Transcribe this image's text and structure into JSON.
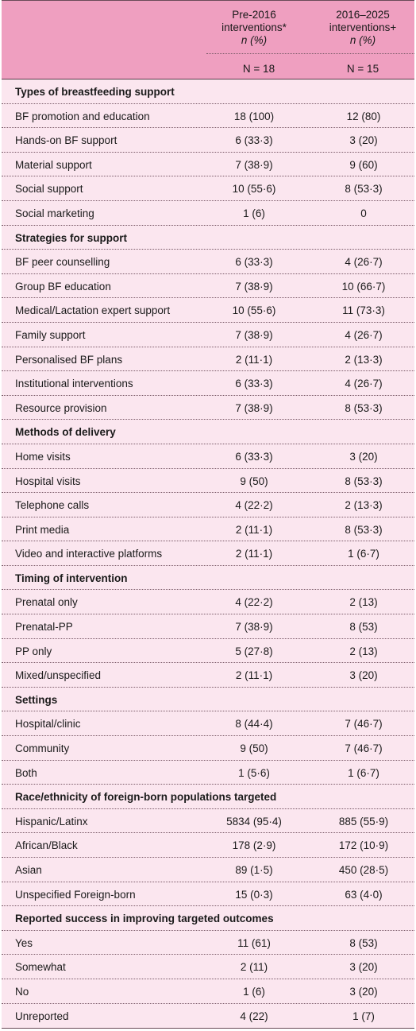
{
  "header": {
    "col1_line1": "Pre-2016",
    "col1_line2": "interventions*",
    "col1_line3": "n (%)",
    "col1_N": "N = 18",
    "col2_line1": "2016–2025",
    "col2_line2": "interventions+",
    "col2_line3": "n (%)",
    "col2_N": "N = 15"
  },
  "rows": [
    {
      "label": "Types of breastfeeding support",
      "section": true,
      "v1": "",
      "v2": ""
    },
    {
      "label": "BF promotion and education",
      "v1": "18 (100)",
      "v2": "12 (80)"
    },
    {
      "label": "Hands-on BF support",
      "v1": "6 (33·3)",
      "v2": "3 (20)"
    },
    {
      "label": "Material support",
      "v1": "7 (38·9)",
      "v2": "9 (60)"
    },
    {
      "label": "Social support",
      "v1": "10 (55·6)",
      "v2": "8 (53·3)"
    },
    {
      "label": "Social marketing",
      "v1": "1 (6)",
      "v2": "0"
    },
    {
      "label": "Strategies for support",
      "section": true,
      "v1": "",
      "v2": ""
    },
    {
      "label": "BF peer counselling",
      "v1": "6 (33·3)",
      "v2": "4 (26·7)"
    },
    {
      "label": "Group BF education",
      "v1": "7 (38·9)",
      "v2": "10 (66·7)"
    },
    {
      "label": "Medical/Lactation expert support",
      "v1": "10 (55·6)",
      "v2": "11 (73·3)"
    },
    {
      "label": "Family support",
      "v1": "7 (38·9)",
      "v2": "4 (26·7)"
    },
    {
      "label": "Personalised BF plans",
      "v1": "2 (11·1)",
      "v2": "2 (13·3)"
    },
    {
      "label": "Institutional interventions",
      "v1": "6 (33·3)",
      "v2": "4 (26·7)"
    },
    {
      "label": "Resource provision",
      "v1": "7 (38·9)",
      "v2": "8 (53·3)"
    },
    {
      "label": "Methods of delivery",
      "section": true,
      "v1": "",
      "v2": ""
    },
    {
      "label": "Home visits",
      "v1": "6 (33·3)",
      "v2": "3 (20)"
    },
    {
      "label": "Hospital visits",
      "v1": "9 (50)",
      "v2": "8 (53·3)"
    },
    {
      "label": "Telephone calls",
      "v1": "4 (22·2)",
      "v2": "2 (13·3)"
    },
    {
      "label": "Print media",
      "v1": "2 (11·1)",
      "v2": "8 (53·3)"
    },
    {
      "label": "Video and interactive platforms",
      "v1": "2 (11·1)",
      "v2": "1 (6·7)"
    },
    {
      "label": "Timing of intervention",
      "section": true,
      "v1": "",
      "v2": ""
    },
    {
      "label": "Prenatal only",
      "v1": "4 (22·2)",
      "v2": "2 (13)"
    },
    {
      "label": "Prenatal-PP",
      "v1": "7 (38·9)",
      "v2": "8 (53)"
    },
    {
      "label": "PP only",
      "v1": "5 (27·8)",
      "v2": "2 (13)"
    },
    {
      "label": "Mixed/unspecified",
      "v1": "2 (11·1)",
      "v2": "3 (20)"
    },
    {
      "label": "Settings",
      "section": true,
      "v1": "",
      "v2": ""
    },
    {
      "label": "Hospital/clinic",
      "v1": "8 (44·4)",
      "v2": "7 (46·7)"
    },
    {
      "label": "Community",
      "v1": "9 (50)",
      "v2": "7 (46·7)"
    },
    {
      "label": "Both",
      "v1": "1 (5·6)",
      "v2": "1 (6·7)"
    },
    {
      "label": "Race/ethnicity of foreign-born populations targeted",
      "section": true,
      "v1": "",
      "v2": ""
    },
    {
      "label": "Hispanic/Latinx",
      "v1": "5834 (95·4)",
      "v2": "885 (55·9)"
    },
    {
      "label": "African/Black",
      "v1": "178 (2·9)",
      "v2": "172 (10·9)"
    },
    {
      "label": "Asian",
      "v1": "89 (1·5)",
      "v2": "450 (28·5)"
    },
    {
      "label": "Unspecified Foreign-born",
      "v1": "15 (0·3)",
      "v2": "63 (4·0)"
    },
    {
      "label": "Reported success in improving targeted outcomes",
      "section": true,
      "v1": "",
      "v2": ""
    },
    {
      "label": "Yes",
      "v1": "11 (61)",
      "v2": "8 (53)"
    },
    {
      "label": "Somewhat",
      "v1": "2 (11)",
      "v2": "3 (20)"
    },
    {
      "label": "No",
      "v1": "1 (6)",
      "v2": "3 (20)"
    },
    {
      "label": "Unreported",
      "v1": "4 (22)",
      "v2": "1 (7)"
    }
  ]
}
